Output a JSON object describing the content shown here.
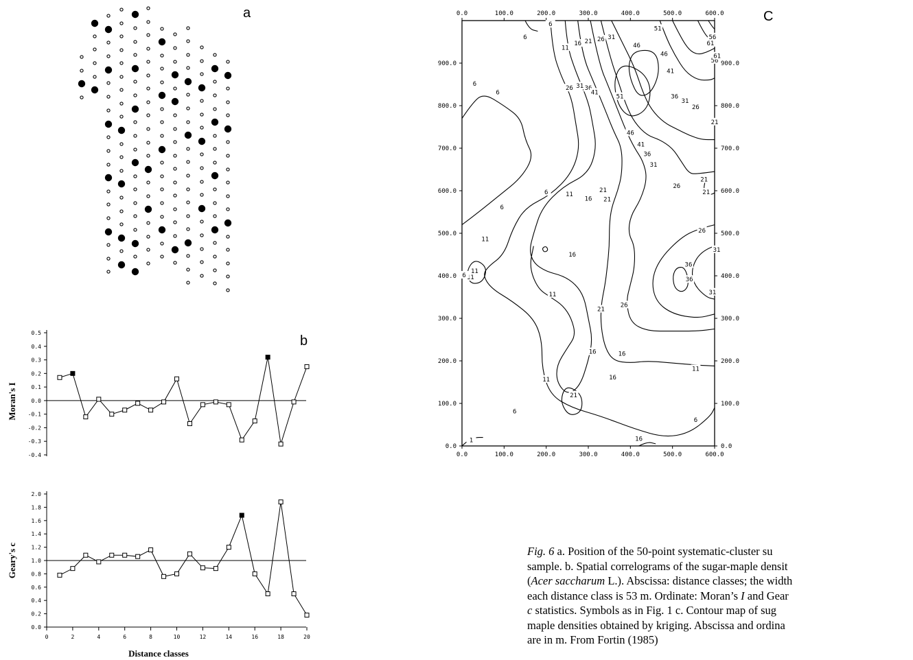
{
  "panel_labels": {
    "a": "a",
    "b": "b",
    "c": "C"
  },
  "panel_a": {
    "columns": [
      {
        "x": 119,
        "dots": [
          [
            83,
            0
          ],
          [
            103,
            0
          ],
          [
            122,
            1
          ],
          [
            142,
            0
          ]
        ]
      },
      {
        "x": 138,
        "dots": [
          [
            34,
            1
          ],
          [
            53,
            0
          ],
          [
            72,
            0
          ],
          [
            92,
            0
          ],
          [
            112,
            0
          ],
          [
            131,
            1
          ]
        ]
      },
      {
        "x": 158,
        "dots": [
          [
            23,
            0
          ],
          [
            43,
            1
          ],
          [
            62,
            0
          ],
          [
            82,
            0
          ],
          [
            102,
            1
          ],
          [
            121,
            0
          ],
          [
            141,
            0
          ],
          [
            161,
            0
          ],
          [
            181,
            1
          ],
          [
            200,
            0
          ],
          [
            220,
            0
          ],
          [
            240,
            0
          ],
          [
            259,
            1
          ],
          [
            279,
            0
          ],
          [
            298,
            0
          ],
          [
            318,
            0
          ],
          [
            338,
            1
          ],
          [
            357,
            0
          ],
          [
            377,
            0
          ],
          [
            396,
            0
          ]
        ]
      },
      {
        "x": 177,
        "dots": [
          [
            14,
            0
          ],
          [
            34,
            0
          ],
          [
            53,
            0
          ],
          [
            73,
            0
          ],
          [
            92,
            0
          ],
          [
            112,
            0
          ],
          [
            131,
            0
          ],
          [
            151,
            0
          ],
          [
            170,
            0
          ],
          [
            190,
            1
          ],
          [
            210,
            0
          ],
          [
            229,
            0
          ],
          [
            249,
            0
          ],
          [
            268,
            1
          ],
          [
            288,
            0
          ],
          [
            308,
            0
          ],
          [
            327,
            0
          ],
          [
            347,
            1
          ],
          [
            366,
            0
          ],
          [
            386,
            1
          ]
        ]
      },
      {
        "x": 197,
        "dots": [
          [
            21,
            1
          ],
          [
            41,
            0
          ],
          [
            61,
            0
          ],
          [
            80,
            0
          ],
          [
            100,
            1
          ],
          [
            119,
            0
          ],
          [
            139,
            0
          ],
          [
            159,
            1
          ],
          [
            178,
            0
          ],
          [
            198,
            0
          ],
          [
            218,
            0
          ],
          [
            237,
            1
          ],
          [
            257,
            0
          ],
          [
            276,
            0
          ],
          [
            296,
            0
          ],
          [
            315,
            0
          ],
          [
            335,
            0
          ],
          [
            355,
            1
          ],
          [
            374,
            0
          ],
          [
            396,
            1
          ]
        ]
      },
      {
        "x": 216,
        "dots": [
          [
            12,
            0
          ],
          [
            32,
            0
          ],
          [
            51,
            0
          ],
          [
            71,
            0
          ],
          [
            90,
            0
          ],
          [
            110,
            0
          ],
          [
            129,
            0
          ],
          [
            149,
            0
          ],
          [
            168,
            0
          ],
          [
            188,
            0
          ],
          [
            208,
            0
          ],
          [
            227,
            0
          ],
          [
            247,
            1
          ],
          [
            266,
            0
          ],
          [
            286,
            0
          ],
          [
            305,
            1
          ],
          [
            325,
            0
          ],
          [
            345,
            0
          ],
          [
            364,
            0
          ],
          [
            384,
            0
          ]
        ]
      },
      {
        "x": 236,
        "dots": [
          [
            42,
            0
          ],
          [
            61,
            1
          ],
          [
            81,
            0
          ],
          [
            100,
            0
          ],
          [
            120,
            0
          ],
          [
            139,
            1
          ],
          [
            159,
            0
          ],
          [
            178,
            0
          ],
          [
            198,
            0
          ],
          [
            218,
            1
          ],
          [
            237,
            0
          ],
          [
            257,
            0
          ],
          [
            276,
            0
          ],
          [
            296,
            0
          ],
          [
            316,
            0
          ],
          [
            335,
            1
          ],
          [
            355,
            0
          ],
          [
            374,
            0
          ]
        ]
      },
      {
        "x": 255,
        "dots": [
          [
            50,
            0
          ],
          [
            70,
            0
          ],
          [
            90,
            0
          ],
          [
            109,
            1
          ],
          [
            129,
            0
          ],
          [
            148,
            1
          ],
          [
            168,
            0
          ],
          [
            188,
            0
          ],
          [
            207,
            0
          ],
          [
            227,
            0
          ],
          [
            246,
            0
          ],
          [
            266,
            0
          ],
          [
            285,
            0
          ],
          [
            305,
            0
          ],
          [
            324,
            0
          ],
          [
            344,
            0
          ],
          [
            364,
            1
          ],
          [
            383,
            0
          ]
        ]
      },
      {
        "x": 274,
        "dots": [
          [
            41,
            0
          ],
          [
            60,
            0
          ],
          [
            80,
            0
          ],
          [
            99,
            0
          ],
          [
            119,
            1
          ],
          [
            138,
            0
          ],
          [
            158,
            0
          ],
          [
            178,
            0
          ],
          [
            197,
            1
          ],
          [
            217,
            0
          ],
          [
            236,
            0
          ],
          [
            256,
            0
          ],
          [
            276,
            0
          ],
          [
            295,
            0
          ],
          [
            315,
            0
          ],
          [
            334,
            0
          ],
          [
            354,
            1
          ],
          [
            373,
            0
          ],
          [
            393,
            0
          ],
          [
            412,
            0
          ]
        ]
      },
      {
        "x": 294,
        "dots": [
          [
            69,
            0
          ],
          [
            89,
            0
          ],
          [
            108,
            0
          ],
          [
            128,
            1
          ],
          [
            147,
            0
          ],
          [
            167,
            0
          ],
          [
            186,
            0
          ],
          [
            206,
            1
          ],
          [
            225,
            0
          ],
          [
            245,
            0
          ],
          [
            265,
            0
          ],
          [
            284,
            0
          ],
          [
            304,
            1
          ],
          [
            323,
            0
          ],
          [
            343,
            0
          ],
          [
            363,
            0
          ],
          [
            382,
            0
          ],
          [
            402,
            0
          ]
        ]
      },
      {
        "x": 313,
        "dots": [
          [
            80,
            0
          ],
          [
            100,
            1
          ],
          [
            119,
            0
          ],
          [
            139,
            0
          ],
          [
            159,
            0
          ],
          [
            178,
            1
          ],
          [
            198,
            0
          ],
          [
            217,
            0
          ],
          [
            237,
            0
          ],
          [
            256,
            1
          ],
          [
            276,
            0
          ],
          [
            296,
            0
          ],
          [
            315,
            0
          ],
          [
            335,
            1
          ],
          [
            354,
            0
          ],
          [
            374,
            0
          ],
          [
            394,
            0
          ],
          [
            413,
            0
          ]
        ]
      },
      {
        "x": 332,
        "dots": [
          [
            90,
            0
          ],
          [
            110,
            1
          ],
          [
            129,
            0
          ],
          [
            149,
            0
          ],
          [
            168,
            0
          ],
          [
            188,
            1
          ],
          [
            207,
            0
          ],
          [
            227,
            0
          ],
          [
            247,
            0
          ],
          [
            266,
            0
          ],
          [
            286,
            0
          ],
          [
            305,
            0
          ],
          [
            325,
            1
          ],
          [
            345,
            0
          ],
          [
            364,
            0
          ],
          [
            384,
            0
          ],
          [
            403,
            0
          ],
          [
            423,
            0
          ]
        ]
      }
    ]
  },
  "panel_b": {
    "xlabel": "Distance classes",
    "x_ticks": [
      "0",
      "2",
      "4",
      "6",
      "8",
      "10",
      "12",
      "14",
      "16",
      "18",
      "20"
    ],
    "moran": {
      "ylabel": "Moran's I",
      "y_ticks": [
        "0.5",
        "0.4",
        "0.3",
        "0.2",
        "0.1",
        "0.0",
        "-0.1",
        "-0.2",
        "-0.3",
        "-0.4"
      ],
      "values": [
        0.17,
        0.2,
        -0.12,
        0.01,
        -0.1,
        -0.07,
        -0.02,
        -0.07,
        -0.01,
        0.16,
        -0.17,
        -0.03,
        -0.01,
        -0.03,
        -0.29,
        -0.15,
        0.32,
        -0.32,
        -0.01,
        0.25
      ],
      "filled": [
        2,
        17
      ]
    },
    "geary": {
      "ylabel": "Geary's c",
      "y_ticks": [
        "2.0",
        "1.8",
        "1.6",
        "1.4",
        "1.2",
        "1.0",
        "0.8",
        "0.6",
        "0.4",
        "0.2",
        "0.0"
      ],
      "values": [
        0.78,
        0.88,
        1.08,
        0.98,
        1.08,
        1.08,
        1.06,
        1.16,
        0.76,
        0.8,
        1.1,
        0.89,
        0.88,
        1.2,
        1.68,
        0.8,
        0.5,
        1.88,
        0.5,
        0.18
      ],
      "filled": [
        15
      ]
    }
  },
  "panel_c": {
    "x_ticks": [
      "0.0",
      "100.0",
      "200.0",
      "300.0",
      "400.0",
      "500.0",
      "600.0"
    ],
    "y_ticks": [
      "900.0",
      "800.0",
      "700.0",
      "600.0",
      "500.0",
      "400.0",
      "300.0",
      "200.0",
      "100.0",
      "0.0"
    ],
    "contour_labels": [
      {
        "t": "6",
        "x": 150,
        "y": 960
      },
      {
        "t": "6",
        "x": 210,
        "y": 990
      },
      {
        "t": "11",
        "x": 245,
        "y": 935
      },
      {
        "t": "16",
        "x": 275,
        "y": 945
      },
      {
        "t": "21",
        "x": 300,
        "y": 950
      },
      {
        "t": "26",
        "x": 330,
        "y": 955
      },
      {
        "t": "31",
        "x": 355,
        "y": 960
      },
      {
        "t": "46",
        "x": 415,
        "y": 940
      },
      {
        "t": "51",
        "x": 465,
        "y": 980
      },
      {
        "t": "46",
        "x": 480,
        "y": 920
      },
      {
        "t": "41",
        "x": 495,
        "y": 880
      },
      {
        "t": "56",
        "x": 595,
        "y": 960
      },
      {
        "t": "61",
        "x": 590,
        "y": 945
      },
      {
        "t": "56",
        "x": 600,
        "y": 905
      },
      {
        "t": "61",
        "x": 606,
        "y": 915
      },
      {
        "t": "6",
        "x": 30,
        "y": 850
      },
      {
        "t": "6",
        "x": 85,
        "y": 830
      },
      {
        "t": "26",
        "x": 255,
        "y": 840
      },
      {
        "t": "31",
        "x": 280,
        "y": 845
      },
      {
        "t": "36",
        "x": 300,
        "y": 840
      },
      {
        "t": "41",
        "x": 315,
        "y": 830
      },
      {
        "t": "51",
        "x": 375,
        "y": 820
      },
      {
        "t": "36",
        "x": 505,
        "y": 820
      },
      {
        "t": "31",
        "x": 530,
        "y": 810
      },
      {
        "t": "26",
        "x": 555,
        "y": 795
      },
      {
        "t": "21",
        "x": 600,
        "y": 760
      },
      {
        "t": "46",
        "x": 400,
        "y": 735
      },
      {
        "t": "41",
        "x": 425,
        "y": 707
      },
      {
        "t": "36",
        "x": 440,
        "y": 685
      },
      {
        "t": "31",
        "x": 455,
        "y": 660
      },
      {
        "t": "26",
        "x": 510,
        "y": 610
      },
      {
        "t": "21",
        "x": 575,
        "y": 625
      },
      {
        "t": "21",
        "x": 580,
        "y": 595
      },
      {
        "t": "21",
        "x": 335,
        "y": 600
      },
      {
        "t": "21",
        "x": 345,
        "y": 578
      },
      {
        "t": "16",
        "x": 300,
        "y": 580
      },
      {
        "t": "11",
        "x": 255,
        "y": 590
      },
      {
        "t": "6",
        "x": 200,
        "y": 595
      },
      {
        "t": "6",
        "x": 95,
        "y": 560
      },
      {
        "t": "26",
        "x": 570,
        "y": 505
      },
      {
        "t": "31",
        "x": 605,
        "y": 460
      },
      {
        "t": "36",
        "x": 538,
        "y": 425
      },
      {
        "t": "36",
        "x": 540,
        "y": 390
      },
      {
        "t": "31",
        "x": 595,
        "y": 360
      },
      {
        "t": "16",
        "x": 262,
        "y": 448
      },
      {
        "t": "11",
        "x": 55,
        "y": 485
      },
      {
        "t": "11",
        "x": 30,
        "y": 410
      },
      {
        "t": "11",
        "x": 20,
        "y": 395
      },
      {
        "t": "6",
        "x": 5,
        "y": 400
      },
      {
        "t": "11",
        "x": 215,
        "y": 355
      },
      {
        "t": "21",
        "x": 330,
        "y": 320
      },
      {
        "t": "26",
        "x": 385,
        "y": 330
      },
      {
        "t": "16",
        "x": 310,
        "y": 220
      },
      {
        "t": "16",
        "x": 380,
        "y": 215
      },
      {
        "t": "16",
        "x": 358,
        "y": 160
      },
      {
        "t": "11",
        "x": 555,
        "y": 180
      },
      {
        "t": "11",
        "x": 200,
        "y": 155
      },
      {
        "t": "21",
        "x": 265,
        "y": 118
      },
      {
        "t": "6",
        "x": 125,
        "y": 80
      },
      {
        "t": "6",
        "x": 555,
        "y": 60
      },
      {
        "t": "16",
        "x": 420,
        "y": 15
      },
      {
        "t": "1",
        "x": 22,
        "y": 12
      }
    ]
  },
  "caption": {
    "lines": [
      [
        {
          "t": "Fig. 6",
          "i": true
        },
        {
          "t": " a. Position of the 50-point systematic-cluster su"
        }
      ],
      [
        {
          "t": "sample. b. Spatial correlograms of the sugar-maple densit"
        }
      ],
      [
        {
          "t": "("
        },
        {
          "t": "Acer saccharum",
          "i": true
        },
        {
          "t": " L.). Abscissa: distance classes; the width"
        }
      ],
      [
        {
          "t": "each distance class is 53 m. Ordinate: Moran’s "
        },
        {
          "t": "I",
          "i": true
        },
        {
          "t": " and Gear"
        }
      ],
      [
        {
          "t": "c",
          "i": true
        },
        {
          "t": " statistics. Symbols as in Fig. 1 c. Contour map of sug"
        }
      ],
      [
        {
          "t": "maple densities obtained by kriging. Abscissa and ordina"
        }
      ],
      [
        {
          "t": "are in m. From Fortin (1985)"
        }
      ]
    ]
  }
}
